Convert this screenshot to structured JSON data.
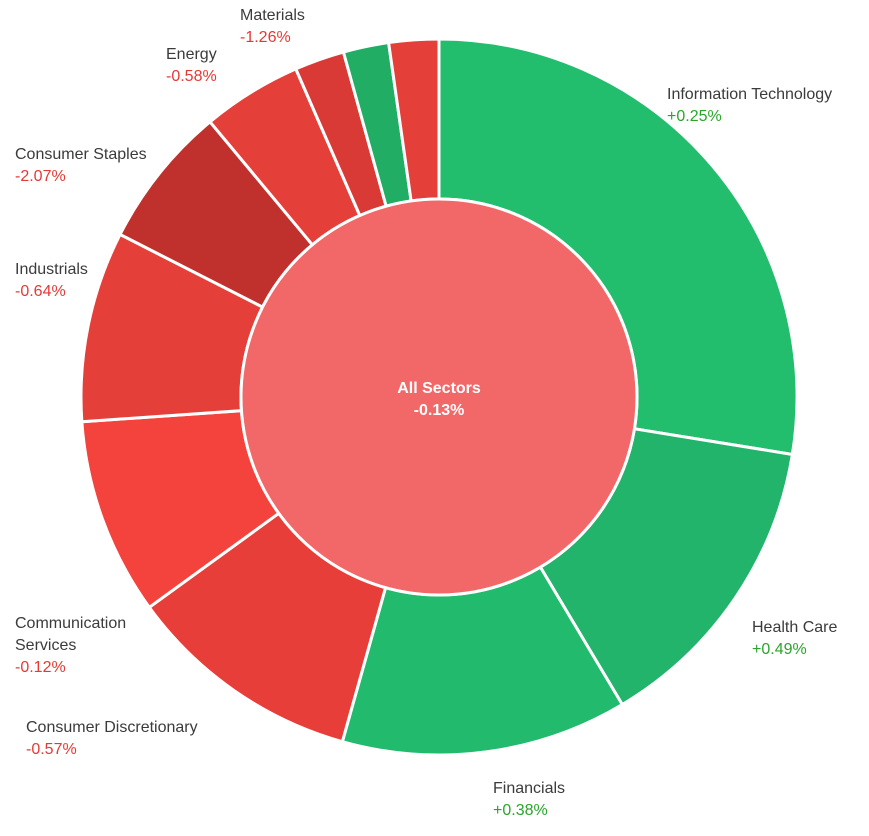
{
  "chart_data": {
    "type": "pie",
    "center": {
      "name": "All Sectors",
      "change": "-0.13%",
      "color": "#f26868"
    },
    "colors": {
      "positive_text": "#2aa52a",
      "negative_text": "#e53935"
    },
    "sectors": [
      {
        "name": "Information Technology",
        "change": "+0.25%",
        "value": 28.2,
        "color": "#22be6e"
      },
      {
        "name": "Health Care",
        "change": "+0.49%",
        "value": 14.2,
        "color": "#22b46a"
      },
      {
        "name": "Financials",
        "change": "+0.38%",
        "value": 13.2,
        "color": "#22ba6c"
      },
      {
        "name": "Consumer Discretionary",
        "change": "-0.57%",
        "value": 10.9,
        "color": "#e83e3a"
      },
      {
        "name": "Communication Services",
        "change": "-0.12%",
        "value": 9.1,
        "color": "#f4423c"
      },
      {
        "name": "Industrials",
        "change": "-0.64%",
        "value": 8.8,
        "color": "#e53f3a"
      },
      {
        "name": "Consumer Staples",
        "change": "-2.07%",
        "value": 6.6,
        "color": "#c0312d"
      },
      {
        "name": "",
        "change": "",
        "value": 4.6,
        "color": "#e53f3a"
      },
      {
        "name": "Energy",
        "change": "-0.58%",
        "value": 2.3,
        "color": "#d93a36"
      },
      {
        "name": "",
        "change": "",
        "value": 2.1,
        "color": "#21ad64"
      },
      {
        "name": "Materials",
        "change": "-1.26%",
        "value": 2.3,
        "color": "#e53f3a"
      }
    ]
  }
}
